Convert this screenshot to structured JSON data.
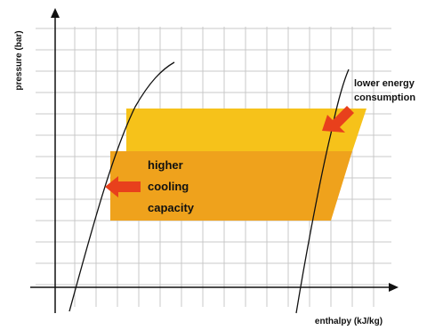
{
  "diagram": {
    "y_axis_label": "pressure (bar)",
    "x_axis_label": "enthalpy (kJ/kg)",
    "annotation_right": {
      "line1": "lower energy",
      "line2": "consumption"
    },
    "annotation_left": {
      "line1": "higher",
      "line2": "cooling",
      "line3": "capacity"
    },
    "colors": {
      "grid": "#c9c9c9",
      "axis": "#111111",
      "curve": "#111111",
      "band_light": "#f6c21a",
      "band_dark": "#efa21c",
      "arrow": "#e8401c"
    }
  }
}
